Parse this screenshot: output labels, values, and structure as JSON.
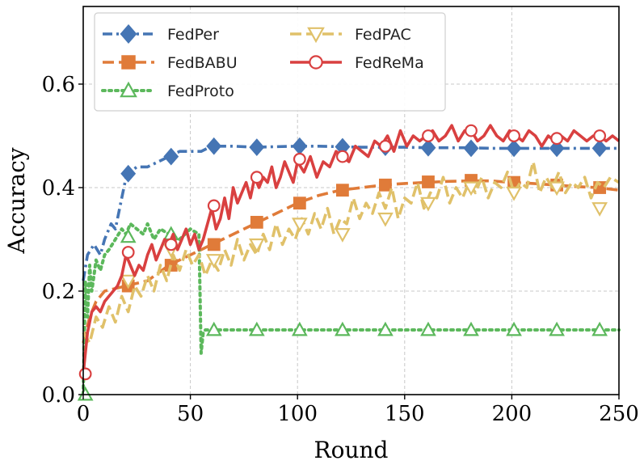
{
  "chart_data": {
    "type": "line",
    "title": "",
    "xlabel": "Round",
    "ylabel": "Accuracy",
    "xlim": [
      0,
      250
    ],
    "ylim": [
      0.0,
      0.75
    ],
    "xticks": [
      0,
      50,
      100,
      150,
      200,
      250
    ],
    "xtick_labels": [
      "0",
      "50",
      "100",
      "150",
      "200",
      "250"
    ],
    "yticks": [
      0.0,
      0.2,
      0.4,
      0.6
    ],
    "ytick_labels": [
      "0.0",
      "0.2",
      "0.4",
      "0.6"
    ],
    "grid": true,
    "legend_position": "top-left",
    "series": [
      {
        "name": "FedPer",
        "color": "#4575b4",
        "linestyle": "dashdot",
        "marker": "diamond",
        "marker_fill": "filled",
        "x": [
          0,
          2,
          5,
          8,
          10,
          13,
          15,
          18,
          20,
          22,
          25,
          30,
          35,
          40,
          45,
          50,
          55,
          60,
          70,
          80,
          90,
          100,
          110,
          120,
          130,
          140,
          150,
          160,
          170,
          180,
          190,
          200,
          210,
          220,
          230,
          240,
          250
        ],
        "y": [
          0.22,
          0.27,
          0.29,
          0.27,
          0.3,
          0.33,
          0.32,
          0.38,
          0.42,
          0.43,
          0.44,
          0.44,
          0.45,
          0.46,
          0.47,
          0.47,
          0.47,
          0.48,
          0.48,
          0.478,
          0.479,
          0.48,
          0.48,
          0.479,
          0.478,
          0.478,
          0.478,
          0.477,
          0.477,
          0.477,
          0.476,
          0.476,
          0.476,
          0.476,
          0.476,
          0.476,
          0.476
        ],
        "markers_x": [
          21,
          41,
          61,
          81,
          101,
          121,
          141,
          161,
          181,
          201,
          221,
          241
        ],
        "markers_y": [
          0.427,
          0.46,
          0.48,
          0.478,
          0.48,
          0.479,
          0.478,
          0.477,
          0.476,
          0.476,
          0.476,
          0.476
        ]
      },
      {
        "name": "FedBABU",
        "color": "#e07b39",
        "linestyle": "dashed",
        "marker": "square",
        "marker_fill": "filled",
        "x": [
          0,
          3,
          6,
          10,
          15,
          20,
          25,
          30,
          40,
          50,
          60,
          70,
          80,
          90,
          100,
          110,
          120,
          130,
          140,
          150,
          160,
          170,
          180,
          190,
          200,
          210,
          220,
          230,
          240,
          250
        ],
        "y": [
          0.1,
          0.15,
          0.18,
          0.2,
          0.205,
          0.21,
          0.215,
          0.22,
          0.25,
          0.27,
          0.29,
          0.31,
          0.33,
          0.35,
          0.37,
          0.385,
          0.395,
          0.4,
          0.405,
          0.408,
          0.41,
          0.412,
          0.413,
          0.413,
          0.41,
          0.408,
          0.405,
          0.402,
          0.4,
          0.395
        ],
        "markers_x": [
          21,
          41,
          61,
          81,
          101,
          121,
          141,
          161,
          181,
          201,
          221,
          241
        ],
        "markers_y": [
          0.21,
          0.25,
          0.29,
          0.333,
          0.37,
          0.395,
          0.405,
          0.411,
          0.414,
          0.41,
          0.405,
          0.4
        ]
      },
      {
        "name": "FedProto",
        "color": "#5cb85c",
        "linestyle": "dotted",
        "marker": "triangle-up",
        "marker_fill": "hollow",
        "x": [
          0,
          1,
          2,
          3,
          4,
          5,
          6,
          8,
          10,
          12,
          15,
          18,
          20,
          22,
          25,
          28,
          30,
          33,
          36,
          40,
          45,
          50,
          54,
          55,
          55.5,
          56,
          57,
          60,
          70,
          80,
          90,
          100,
          110,
          120,
          130,
          140,
          150,
          160,
          170,
          180,
          190,
          200,
          210,
          220,
          230,
          240,
          250
        ],
        "y": [
          0.0,
          0.22,
          0.15,
          0.25,
          0.2,
          0.23,
          0.26,
          0.24,
          0.27,
          0.28,
          0.3,
          0.32,
          0.31,
          0.33,
          0.32,
          0.31,
          0.33,
          0.3,
          0.32,
          0.31,
          0.3,
          0.32,
          0.31,
          0.08,
          0.1,
          0.12,
          0.125,
          0.125,
          0.125,
          0.125,
          0.125,
          0.125,
          0.125,
          0.125,
          0.125,
          0.125,
          0.125,
          0.125,
          0.125,
          0.125,
          0.125,
          0.125,
          0.125,
          0.125,
          0.125,
          0.125,
          0.125
        ],
        "markers_x": [
          1,
          21,
          41,
          61,
          81,
          101,
          121,
          141,
          161,
          181,
          201,
          221,
          241
        ],
        "markers_y": [
          0.0,
          0.305,
          0.31,
          0.125,
          0.125,
          0.125,
          0.125,
          0.125,
          0.125,
          0.125,
          0.125,
          0.125,
          0.125
        ]
      },
      {
        "name": "FedPAC",
        "color": "#e0c16a",
        "linestyle": "dashed",
        "marker": "triangle-down",
        "marker_fill": "hollow",
        "x": [
          0,
          3,
          6,
          9,
          12,
          15,
          18,
          21,
          24,
          27,
          30,
          33,
          36,
          39,
          42,
          45,
          48,
          51,
          54,
          57,
          60,
          63,
          66,
          69,
          72,
          75,
          78,
          81,
          84,
          87,
          90,
          93,
          96,
          99,
          102,
          105,
          108,
          111,
          114,
          117,
          120,
          123,
          126,
          129,
          132,
          135,
          138,
          141,
          144,
          147,
          150,
          153,
          156,
          159,
          162,
          165,
          168,
          171,
          174,
          177,
          180,
          183,
          186,
          189,
          192,
          195,
          198,
          201,
          204,
          207,
          210,
          213,
          216,
          219,
          222,
          225,
          228,
          231,
          234,
          237,
          240,
          243,
          246,
          250
        ],
        "y": [
          0.12,
          0.1,
          0.15,
          0.13,
          0.17,
          0.14,
          0.19,
          0.16,
          0.21,
          0.19,
          0.23,
          0.2,
          0.25,
          0.22,
          0.27,
          0.24,
          0.28,
          0.25,
          0.27,
          0.23,
          0.26,
          0.24,
          0.28,
          0.25,
          0.3,
          0.26,
          0.29,
          0.27,
          0.31,
          0.28,
          0.33,
          0.29,
          0.32,
          0.3,
          0.34,
          0.31,
          0.35,
          0.32,
          0.36,
          0.31,
          0.34,
          0.33,
          0.38,
          0.34,
          0.37,
          0.35,
          0.39,
          0.36,
          0.4,
          0.34,
          0.38,
          0.37,
          0.41,
          0.36,
          0.39,
          0.38,
          0.42,
          0.37,
          0.4,
          0.38,
          0.41,
          0.39,
          0.42,
          0.38,
          0.41,
          0.4,
          0.43,
          0.39,
          0.41,
          0.4,
          0.45,
          0.39,
          0.42,
          0.4,
          0.43,
          0.39,
          0.41,
          0.4,
          0.42,
          0.38,
          0.41,
          0.4,
          0.42,
          0.41
        ],
        "markers_x": [
          21,
          41,
          61,
          81,
          101,
          121,
          141,
          161,
          181,
          201,
          221,
          241
        ],
        "markers_y": [
          0.22,
          0.28,
          0.26,
          0.29,
          0.33,
          0.31,
          0.34,
          0.37,
          0.4,
          0.39,
          0.4,
          0.36
        ]
      },
      {
        "name": "FedReMa",
        "color": "#d94040",
        "linestyle": "solid",
        "marker": "circle",
        "marker_fill": "hollow",
        "x": [
          0,
          2,
          4,
          6,
          8,
          10,
          12,
          14,
          16,
          18,
          20,
          22,
          24,
          26,
          28,
          30,
          32,
          34,
          36,
          38,
          40,
          42,
          44,
          46,
          48,
          50,
          52,
          54,
          56,
          58,
          60,
          62,
          64,
          66,
          68,
          70,
          72,
          74,
          76,
          78,
          80,
          82,
          84,
          86,
          88,
          90,
          92,
          94,
          96,
          98,
          100,
          103,
          106,
          109,
          112,
          115,
          118,
          121,
          124,
          127,
          130,
          133,
          136,
          139,
          142,
          145,
          148,
          151,
          154,
          157,
          160,
          163,
          166,
          169,
          172,
          175,
          178,
          181,
          184,
          187,
          190,
          193,
          196,
          199,
          202,
          205,
          208,
          211,
          214,
          217,
          220,
          223,
          226,
          229,
          232,
          235,
          238,
          241,
          244,
          247,
          250
        ],
        "y": [
          0.04,
          0.12,
          0.16,
          0.17,
          0.16,
          0.18,
          0.19,
          0.2,
          0.21,
          0.23,
          0.27,
          0.25,
          0.23,
          0.25,
          0.24,
          0.27,
          0.29,
          0.26,
          0.28,
          0.3,
          0.29,
          0.31,
          0.28,
          0.3,
          0.32,
          0.29,
          0.31,
          0.28,
          0.3,
          0.33,
          0.36,
          0.32,
          0.34,
          0.38,
          0.34,
          0.4,
          0.37,
          0.39,
          0.41,
          0.38,
          0.42,
          0.4,
          0.42,
          0.41,
          0.44,
          0.4,
          0.42,
          0.45,
          0.43,
          0.41,
          0.45,
          0.43,
          0.46,
          0.42,
          0.45,
          0.44,
          0.47,
          0.46,
          0.45,
          0.48,
          0.47,
          0.46,
          0.49,
          0.48,
          0.5,
          0.47,
          0.51,
          0.48,
          0.5,
          0.49,
          0.5,
          0.51,
          0.49,
          0.5,
          0.52,
          0.49,
          0.51,
          0.51,
          0.49,
          0.5,
          0.52,
          0.5,
          0.49,
          0.51,
          0.5,
          0.49,
          0.51,
          0.5,
          0.48,
          0.5,
          0.49,
          0.5,
          0.49,
          0.51,
          0.5,
          0.49,
          0.5,
          0.5,
          0.49,
          0.5,
          0.49
        ],
        "markers_x": [
          1,
          21,
          41,
          61,
          81,
          101,
          121,
          141,
          161,
          181,
          201,
          221,
          241
        ],
        "markers_y": [
          0.04,
          0.275,
          0.29,
          0.365,
          0.42,
          0.455,
          0.46,
          0.48,
          0.5,
          0.51,
          0.5,
          0.495,
          0.5
        ]
      }
    ]
  }
}
